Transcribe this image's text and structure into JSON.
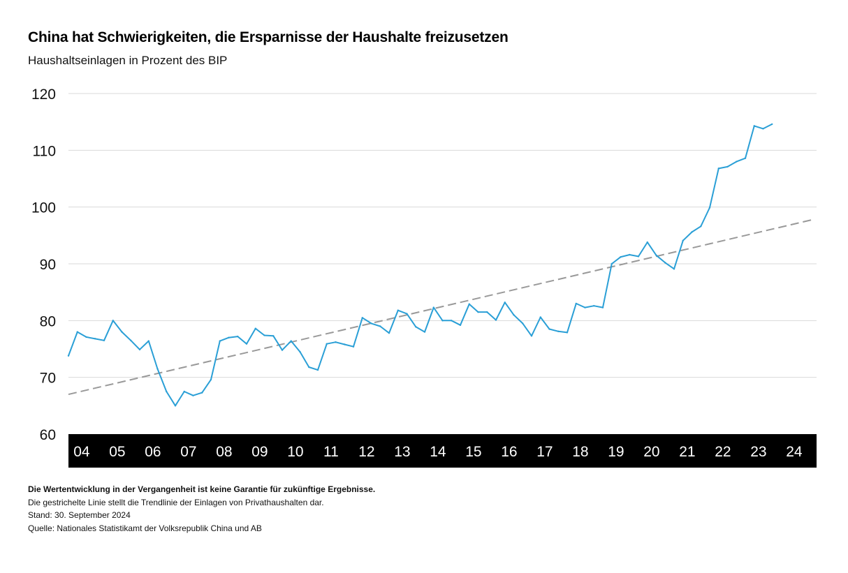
{
  "title": "China hat Schwierigkeiten, die Ersparnisse der Haushalte freizusetzen",
  "subtitle": "Haushaltseinlagen in Prozent des BIP",
  "notes": {
    "disclaimer": "Die Wertentwicklung in der Vergangenheit ist keine Garantie für zukünftige Ergebnisse.",
    "trend_note": "Die gestrichelte Linie stellt die Trendlinie der Einlagen von Privathaushalten dar.",
    "date": "Stand: 30. September 2024",
    "source": "Quelle: Nationales Statistikamt der Volksrepublik China und AB"
  },
  "colors": {
    "series": "#2a9fd6",
    "trend": "#999999",
    "grid": "#d9d9d9",
    "axis_band": "#000000",
    "axis_text": "#ffffff"
  },
  "chart_data": {
    "type": "line",
    "xlabel": "",
    "ylabel": "",
    "ylim": [
      60,
      120
    ],
    "xlim": [
      2004.0,
      2025.0
    ],
    "yticks": [
      60,
      70,
      80,
      90,
      100,
      110,
      120
    ],
    "xtick_labels": [
      "04",
      "05",
      "06",
      "07",
      "08",
      "09",
      "10",
      "11",
      "12",
      "13",
      "14",
      "15",
      "16",
      "17",
      "18",
      "19",
      "20",
      "21",
      "22",
      "23",
      "24"
    ],
    "xtick_years": [
      2004,
      2005,
      2006,
      2007,
      2008,
      2009,
      2010,
      2011,
      2012,
      2013,
      2014,
      2015,
      2016,
      2017,
      2018,
      2019,
      2020,
      2021,
      2022,
      2023,
      2024
    ],
    "grid": true,
    "series": [
      {
        "values": [
          [
            2004.0,
            73.8
          ],
          [
            2004.25,
            78.0
          ],
          [
            2004.5,
            77.1
          ],
          [
            2004.75,
            76.8
          ],
          [
            2005.0,
            76.5
          ],
          [
            2005.25,
            80.0
          ],
          [
            2005.5,
            78.0
          ],
          [
            2005.75,
            76.5
          ],
          [
            2006.0,
            74.9
          ],
          [
            2006.25,
            76.4
          ],
          [
            2006.5,
            71.5
          ],
          [
            2006.75,
            67.5
          ],
          [
            2007.0,
            65.0
          ],
          [
            2007.25,
            67.5
          ],
          [
            2007.5,
            66.8
          ],
          [
            2007.75,
            67.3
          ],
          [
            2008.0,
            69.6
          ],
          [
            2008.25,
            76.4
          ],
          [
            2008.5,
            77.0
          ],
          [
            2008.75,
            77.2
          ],
          [
            2009.0,
            75.9
          ],
          [
            2009.25,
            78.6
          ],
          [
            2009.5,
            77.4
          ],
          [
            2009.75,
            77.3
          ],
          [
            2010.0,
            74.8
          ],
          [
            2010.25,
            76.4
          ],
          [
            2010.5,
            74.5
          ],
          [
            2010.75,
            71.8
          ],
          [
            2011.0,
            71.3
          ],
          [
            2011.25,
            75.9
          ],
          [
            2011.5,
            76.2
          ],
          [
            2011.75,
            75.8
          ],
          [
            2012.0,
            75.4
          ],
          [
            2012.25,
            80.5
          ],
          [
            2012.5,
            79.5
          ],
          [
            2012.75,
            79.0
          ],
          [
            2013.0,
            77.8
          ],
          [
            2013.25,
            81.8
          ],
          [
            2013.5,
            81.2
          ],
          [
            2013.75,
            78.9
          ],
          [
            2014.0,
            78.0
          ],
          [
            2014.25,
            82.3
          ],
          [
            2014.5,
            80.0
          ],
          [
            2014.75,
            80.0
          ],
          [
            2015.0,
            79.2
          ],
          [
            2015.25,
            82.9
          ],
          [
            2015.5,
            81.5
          ],
          [
            2015.75,
            81.5
          ],
          [
            2016.0,
            80.1
          ],
          [
            2016.25,
            83.2
          ],
          [
            2016.5,
            81.0
          ],
          [
            2016.75,
            79.5
          ],
          [
            2017.0,
            77.3
          ],
          [
            2017.25,
            80.6
          ],
          [
            2017.5,
            78.5
          ],
          [
            2017.75,
            78.1
          ],
          [
            2018.0,
            77.9
          ],
          [
            2018.25,
            83.0
          ],
          [
            2018.5,
            82.3
          ],
          [
            2018.75,
            82.6
          ],
          [
            2019.0,
            82.3
          ],
          [
            2019.25,
            90.0
          ],
          [
            2019.5,
            91.2
          ],
          [
            2019.75,
            91.6
          ],
          [
            2020.0,
            91.3
          ],
          [
            2020.25,
            93.8
          ],
          [
            2020.5,
            91.5
          ],
          [
            2020.75,
            90.2
          ],
          [
            2021.0,
            89.1
          ],
          [
            2021.25,
            94.1
          ],
          [
            2021.5,
            95.6
          ],
          [
            2021.75,
            96.6
          ],
          [
            2022.0,
            99.9
          ],
          [
            2022.25,
            106.8
          ],
          [
            2022.5,
            107.1
          ],
          [
            2022.75,
            108.0
          ],
          [
            2023.0,
            108.6
          ],
          [
            2023.25,
            114.3
          ],
          [
            2023.5,
            113.8
          ],
          [
            2023.75,
            114.6
          ]
        ]
      }
    ],
    "trendline": {
      "style": "dashed",
      "from": [
        2004.0,
        67.0
      ],
      "to": [
        2024.9,
        97.8
      ]
    }
  }
}
